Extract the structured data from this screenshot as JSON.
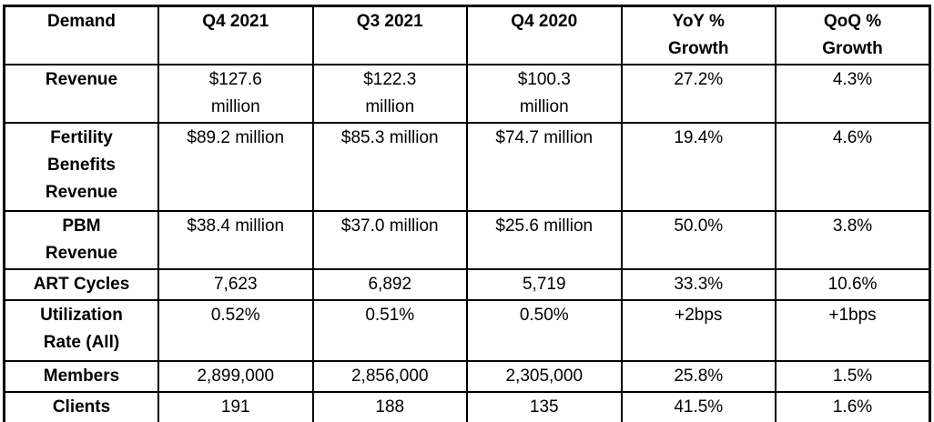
{
  "colors": {
    "text": "#000000",
    "border": "#000000",
    "background": "#ffffff"
  },
  "chart_data": {
    "type": "table",
    "columns": [
      "Demand",
      "Q4 2021",
      "Q3 2021",
      "Q4 2020",
      "YoY %\nGrowth",
      "QoQ %\nGrowth"
    ],
    "rows": [
      {
        "label": "Revenue",
        "values": [
          "$127.6\nmillion",
          "$122.3\nmillion",
          "$100.3\nmillion",
          "27.2%",
          "4.3%"
        ]
      },
      {
        "label": "Fertility\nBenefits\nRevenue",
        "values": [
          "$89.2 million",
          "$85.3 million",
          "$74.7 million",
          "19.4%",
          "4.6%"
        ]
      },
      {
        "label": "PBM\nRevenue",
        "values": [
          "$38.4 million",
          "$37.0 million",
          "$25.6 million",
          "50.0%",
          "3.8%"
        ]
      },
      {
        "label": "ART Cycles",
        "values": [
          "7,623",
          "6,892",
          "5,719",
          "33.3%",
          "10.6%"
        ]
      },
      {
        "label": "Utilization\nRate (All)",
        "values": [
          "0.52%",
          "0.51%",
          "0.50%",
          "+2bps",
          "+1bps"
        ]
      },
      {
        "label": "Members",
        "values": [
          "2,899,000",
          "2,856,000",
          "2,305,000",
          "25.8%",
          "1.5%"
        ]
      },
      {
        "label": "Clients",
        "values": [
          "191",
          "188",
          "135",
          "41.5%",
          "1.6%"
        ]
      }
    ]
  }
}
